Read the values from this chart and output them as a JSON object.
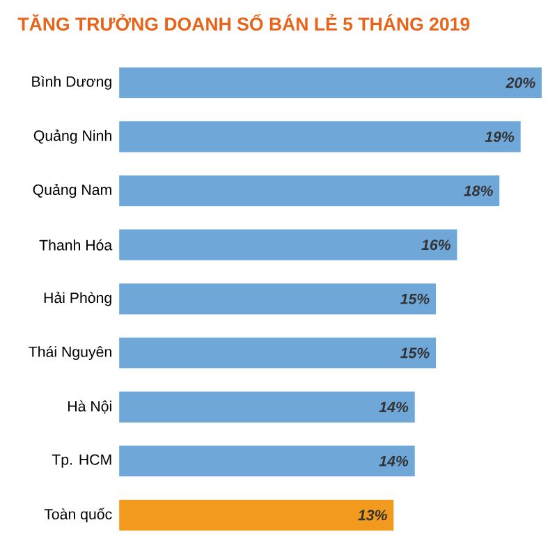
{
  "chart_data": {
    "type": "bar",
    "orientation": "horizontal",
    "title": "TĂNG TRƯỞNG DOANH SỐ BÁN LẺ 5 THÁNG 2019",
    "categories": [
      "Bình Dương",
      "Quảng Ninh",
      "Quảng Nam",
      "Thanh Hóa",
      "Hải Phòng",
      "Thái Nguyên",
      "Hà Nội",
      "Tp. HCM",
      "Toàn quốc"
    ],
    "values": [
      20,
      19,
      18,
      16,
      15,
      15,
      14,
      14,
      13
    ],
    "value_labels": [
      "20%",
      "19%",
      "18%",
      "16%",
      "15%",
      "15%",
      "14%",
      "14%",
      "13%"
    ],
    "colors": [
      "#6fa8d8",
      "#6fa8d8",
      "#6fa8d8",
      "#6fa8d8",
      "#6fa8d8",
      "#6fa8d8",
      "#6fa8d8",
      "#6fa8d8",
      "#f29a1e"
    ]
  }
}
